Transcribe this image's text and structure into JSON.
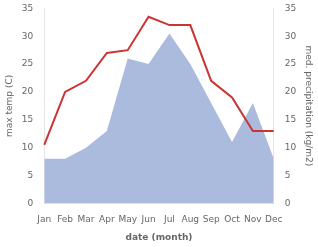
{
  "chart_data": {
    "type": "line",
    "categories": [
      "Jan",
      "Feb",
      "Mar",
      "Apr",
      "May",
      "Jun",
      "Jul",
      "Aug",
      "Sep",
      "Oct",
      "Nov",
      "Dec"
    ],
    "series": [
      {
        "type": "area",
        "color": "#aabbdd",
        "axis": "y2",
        "values": [
          8,
          8,
          10,
          13,
          26,
          25,
          30.5,
          25,
          18,
          11,
          18,
          8
        ]
      },
      {
        "type": "line",
        "color": "#cc3333",
        "values": [
          10.5,
          20.0,
          22.0,
          27.0,
          27.5,
          33.5,
          32.0,
          32.0,
          22.0,
          19.0,
          13.0,
          13.0
        ]
      }
    ],
    "xlabel": "date (month)",
    "ylabel": "max temp (C)",
    "y2label": "med. precipitation (kg/m2)",
    "ylim": [
      0,
      35
    ],
    "yticks": [
      0,
      5,
      10,
      15,
      20,
      25,
      30,
      35
    ],
    "y2lim": [
      0,
      35
    ],
    "y2ticks": [
      0,
      5,
      10,
      15,
      20,
      25,
      30,
      35
    ],
    "grid": false
  }
}
